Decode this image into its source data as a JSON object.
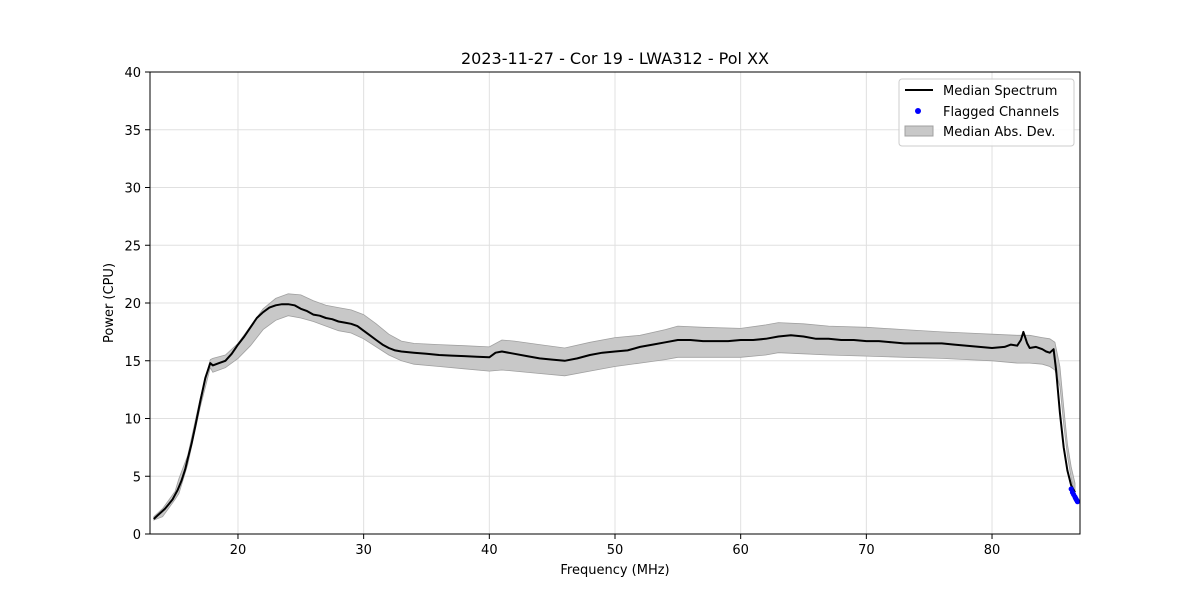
{
  "chart_data": {
    "type": "line",
    "title": "2023-11-27 - Cor 19 - LWA312 - Pol XX",
    "xlabel": "Frequency (MHz)",
    "ylabel": "Power (CPU)",
    "xlim": [
      13,
      87
    ],
    "ylim": [
      0,
      40
    ],
    "xticks": [
      20,
      30,
      40,
      50,
      60,
      70,
      80
    ],
    "yticks": [
      0,
      5,
      10,
      15,
      20,
      25,
      30,
      35,
      40
    ],
    "grid": true,
    "legend_position": "top-right",
    "series": [
      {
        "name": "Median Spectrum",
        "kind": "line",
        "color": "#000000",
        "x": [
          13.3,
          13.6,
          13.9,
          14.2,
          14.5,
          14.8,
          15.0,
          15.2,
          15.5,
          15.8,
          16.0,
          16.3,
          16.6,
          17.0,
          17.4,
          17.8,
          18.0,
          18.5,
          19.0,
          19.5,
          20.0,
          20.5,
          21.0,
          21.5,
          22.0,
          22.5,
          23.0,
          23.5,
          24.0,
          24.5,
          25.0,
          25.5,
          26.0,
          26.5,
          27.0,
          27.5,
          28.0,
          28.5,
          29.0,
          29.5,
          30.0,
          30.5,
          31.0,
          31.5,
          32.0,
          32.5,
          33.0,
          33.5,
          34.0,
          35.0,
          36.0,
          37.0,
          38.0,
          39.0,
          40.0,
          40.5,
          41.0,
          42.0,
          43.0,
          44.0,
          45.0,
          46.0,
          47.0,
          48.0,
          49.0,
          50.0,
          51.0,
          52.0,
          53.0,
          54.0,
          55.0,
          56.0,
          57.0,
          58.0,
          59.0,
          60.0,
          61.0,
          62.0,
          63.0,
          64.0,
          65.0,
          66.0,
          67.0,
          68.0,
          69.0,
          70.0,
          71.0,
          72.0,
          73.0,
          74.0,
          75.0,
          76.0,
          77.0,
          78.0,
          79.0,
          80.0,
          81.0,
          81.5,
          82.0,
          82.3,
          82.5,
          82.8,
          83.0,
          83.5,
          84.0,
          84.3,
          84.6,
          84.9,
          85.1,
          85.4,
          85.7,
          86.0,
          86.3,
          86.6
        ],
        "y": [
          1.3,
          1.6,
          1.9,
          2.2,
          2.6,
          3.0,
          3.4,
          3.8,
          4.6,
          5.6,
          6.5,
          7.8,
          9.3,
          11.5,
          13.5,
          14.8,
          14.6,
          14.8,
          15.0,
          15.6,
          16.4,
          17.1,
          17.9,
          18.7,
          19.2,
          19.6,
          19.8,
          19.9,
          19.9,
          19.8,
          19.5,
          19.3,
          19.0,
          18.9,
          18.7,
          18.6,
          18.4,
          18.3,
          18.2,
          18.0,
          17.6,
          17.2,
          16.8,
          16.4,
          16.1,
          15.9,
          15.8,
          15.75,
          15.7,
          15.6,
          15.5,
          15.45,
          15.4,
          15.35,
          15.3,
          15.7,
          15.8,
          15.6,
          15.4,
          15.2,
          15.1,
          15.0,
          15.2,
          15.5,
          15.7,
          15.8,
          15.9,
          16.2,
          16.4,
          16.6,
          16.8,
          16.8,
          16.7,
          16.7,
          16.7,
          16.8,
          16.8,
          16.9,
          17.1,
          17.2,
          17.1,
          16.9,
          16.9,
          16.8,
          16.8,
          16.7,
          16.7,
          16.6,
          16.5,
          16.5,
          16.5,
          16.5,
          16.4,
          16.3,
          16.2,
          16.1,
          16.2,
          16.4,
          16.3,
          16.8,
          17.5,
          16.5,
          16.1,
          16.2,
          16.0,
          15.8,
          15.7,
          16.0,
          14.2,
          10.5,
          7.5,
          5.5,
          4.2,
          3.6
        ]
      },
      {
        "name": "Flagged Channels",
        "kind": "scatter",
        "color": "#0000ff",
        "x": [
          86.3,
          86.4,
          86.5,
          86.6,
          86.65,
          86.7,
          86.75,
          86.8
        ],
        "y": [
          3.9,
          3.6,
          3.4,
          3.2,
          3.1,
          3.0,
          2.9,
          2.8
        ]
      },
      {
        "name": "Median Abs. Dev.",
        "kind": "band",
        "color": "#c8c8c8",
        "edge_color": "#a0a0a0",
        "x": [
          13.3,
          14.0,
          15.0,
          15.3,
          16.0,
          17.0,
          17.8,
          18.0,
          19.0,
          20.0,
          21.0,
          22.0,
          23.0,
          24.0,
          25.0,
          26.0,
          27.0,
          28.0,
          29.0,
          30.0,
          31.0,
          32.0,
          33.0,
          34.0,
          36.0,
          38.0,
          40.0,
          41.0,
          42.0,
          44.0,
          46.0,
          48.0,
          50.0,
          52.0,
          54.0,
          55.0,
          57.0,
          60.0,
          62.0,
          63.0,
          65.0,
          67.0,
          70.0,
          73.0,
          76.0,
          78.0,
          80.0,
          82.0,
          83.0,
          84.0,
          84.6,
          85.0,
          85.4,
          85.7,
          86.0,
          86.3,
          86.6
        ],
        "upper": [
          1.5,
          2.2,
          3.7,
          4.8,
          6.8,
          11.8,
          15.1,
          15.2,
          15.5,
          16.5,
          18.0,
          19.5,
          20.4,
          20.8,
          20.7,
          20.2,
          19.8,
          19.6,
          19.4,
          19.0,
          18.2,
          17.3,
          16.7,
          16.5,
          16.4,
          16.3,
          16.2,
          16.8,
          16.7,
          16.4,
          16.1,
          16.6,
          17.0,
          17.2,
          17.7,
          18.0,
          17.9,
          17.8,
          18.1,
          18.3,
          18.2,
          18.0,
          17.9,
          17.7,
          17.5,
          17.4,
          17.3,
          17.2,
          17.2,
          17.0,
          16.9,
          16.6,
          14.5,
          11.0,
          7.8,
          5.8,
          4.4
        ],
        "lower": [
          1.2,
          1.5,
          3.0,
          3.5,
          6.0,
          11.0,
          14.4,
          14.0,
          14.4,
          15.2,
          16.3,
          17.7,
          18.5,
          18.9,
          18.7,
          18.4,
          18.0,
          17.6,
          17.4,
          16.9,
          16.2,
          15.5,
          15.0,
          14.7,
          14.5,
          14.3,
          14.1,
          14.2,
          14.1,
          13.9,
          13.7,
          14.1,
          14.5,
          14.8,
          15.1,
          15.3,
          15.3,
          15.3,
          15.5,
          15.7,
          15.6,
          15.5,
          15.4,
          15.3,
          15.2,
          15.1,
          15.0,
          14.8,
          14.8,
          14.7,
          14.5,
          14.2,
          12.8,
          9.5,
          6.8,
          4.8,
          3.4
        ]
      }
    ]
  }
}
